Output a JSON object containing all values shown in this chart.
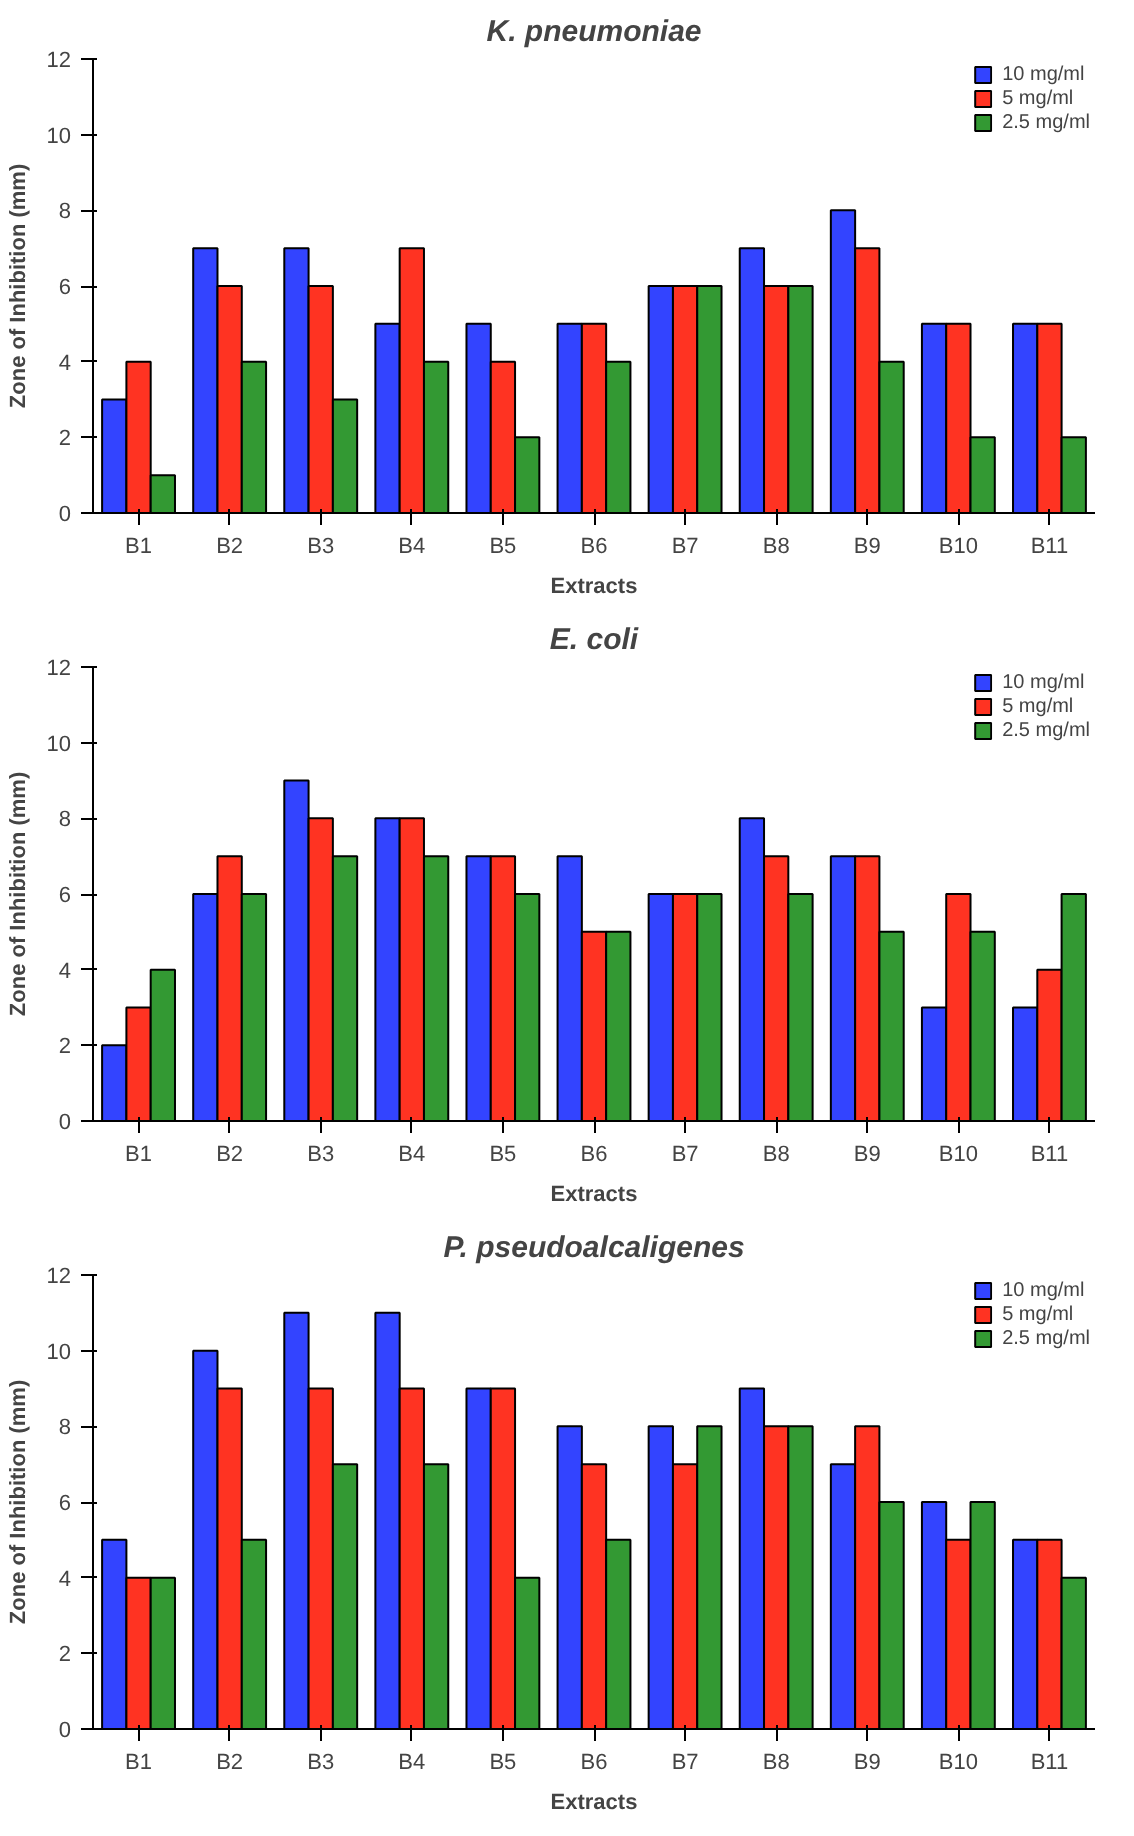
{
  "chart_data": [
    {
      "type": "bar",
      "title": "K. pneumoniae",
      "xlabel": "Extracts",
      "ylabel": "Zone of Inhibition (mm)",
      "categories": [
        "B1",
        "B2",
        "B3",
        "B4",
        "B5",
        "B6",
        "B7",
        "B8",
        "B9",
        "B10",
        "B11"
      ],
      "ylim": [
        0,
        12
      ],
      "yticks": [
        0,
        2,
        4,
        6,
        8,
        10,
        12
      ],
      "legend": "top right",
      "grid": false,
      "series": [
        {
          "name": "10 mg/ml",
          "color": "#3344ff",
          "values": [
            3,
            7,
            7,
            5,
            5,
            5,
            6,
            7,
            8,
            5,
            5
          ]
        },
        {
          "name": "5 mg/ml",
          "color": "#ff3322",
          "values": [
            4,
            6,
            6,
            7,
            4,
            5,
            6,
            6,
            7,
            5,
            5
          ]
        },
        {
          "name": "2.5 mg/ml",
          "color": "#339933",
          "values": [
            1,
            4,
            3,
            4,
            2,
            4,
            6,
            6,
            4,
            2,
            2
          ]
        }
      ]
    },
    {
      "type": "bar",
      "title": "E. coli",
      "xlabel": "Extracts",
      "ylabel": "Zone of Inhibition (mm)",
      "categories": [
        "B1",
        "B2",
        "B3",
        "B4",
        "B5",
        "B6",
        "B7",
        "B8",
        "B9",
        "B10",
        "B11"
      ],
      "ylim": [
        0,
        12
      ],
      "yticks": [
        0,
        2,
        4,
        6,
        8,
        10,
        12
      ],
      "legend": "top right",
      "grid": false,
      "series": [
        {
          "name": "10 mg/ml",
          "color": "#3344ff",
          "values": [
            2,
            6,
            9,
            8,
            7,
            7,
            6,
            8,
            7,
            3,
            3
          ]
        },
        {
          "name": "5 mg/ml",
          "color": "#ff3322",
          "values": [
            3,
            7,
            8,
            8,
            7,
            5,
            6,
            7,
            7,
            6,
            4
          ]
        },
        {
          "name": "2.5 mg/ml",
          "color": "#339933",
          "values": [
            4,
            6,
            7,
            7,
            6,
            5,
            6,
            6,
            5,
            5,
            6
          ]
        }
      ]
    },
    {
      "type": "bar",
      "title": "P. pseudoalcaligenes",
      "xlabel": "Extracts",
      "ylabel": "Zone of Inhibition (mm)",
      "categories": [
        "B1",
        "B2",
        "B3",
        "B4",
        "B5",
        "B6",
        "B7",
        "B8",
        "B9",
        "B10",
        "B11"
      ],
      "ylim": [
        0,
        12
      ],
      "yticks": [
        0,
        2,
        4,
        6,
        8,
        10,
        12
      ],
      "legend": "top right",
      "grid": false,
      "series": [
        {
          "name": "10 mg/ml",
          "color": "#3344ff",
          "values": [
            5,
            10,
            11,
            11,
            9,
            8,
            8,
            9,
            7,
            6,
            5
          ]
        },
        {
          "name": "5 mg/ml",
          "color": "#ff3322",
          "values": [
            4,
            9,
            9,
            9,
            9,
            7,
            7,
            8,
            8,
            5,
            5
          ]
        },
        {
          "name": "2.5 mg/ml",
          "color": "#339933",
          "values": [
            4,
            5,
            7,
            7,
            4,
            5,
            8,
            8,
            6,
            6,
            4
          ]
        }
      ]
    }
  ]
}
